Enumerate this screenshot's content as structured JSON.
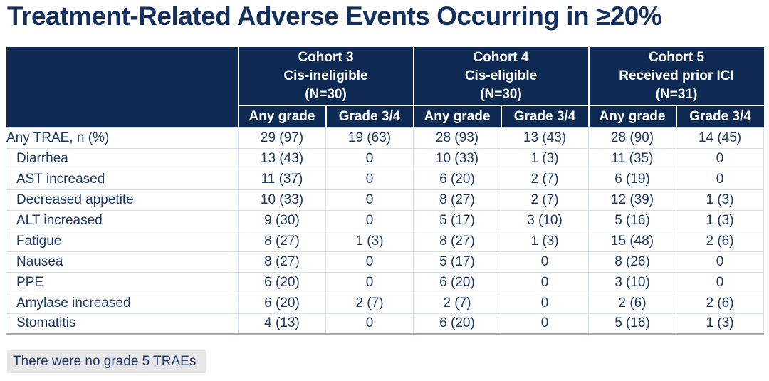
{
  "title": "Treatment-Related Adverse Events Occurring in ≥20%",
  "chart_data": {
    "type": "table",
    "title": "Treatment-Related Adverse Events Occurring in ≥20%",
    "cohorts": [
      {
        "name": "Cohort 3",
        "subtitle": "Cis-ineligible",
        "n": "(N=30)"
      },
      {
        "name": "Cohort 4",
        "subtitle": "Cis-eligible",
        "n": "(N=30)"
      },
      {
        "name": "Cohort 5",
        "subtitle": "Received prior ICI",
        "n": "(N=31)"
      }
    ],
    "grade_columns": [
      "Any grade",
      "Grade 3/4",
      "Any grade",
      "Grade 3/4",
      "Any grade",
      "Grade 3/4"
    ],
    "rows": [
      {
        "label": "Any TRAE, n (%)",
        "indent": false,
        "values": [
          "29 (97)",
          "19 (63)",
          "28 (93)",
          "13 (43)",
          "28 (90)",
          "14 (45)"
        ]
      },
      {
        "label": "Diarrhea",
        "indent": true,
        "values": [
          "13 (43)",
          "0",
          "10 (33)",
          "1 (3)",
          "11 (35)",
          "0"
        ]
      },
      {
        "label": "AST increased",
        "indent": true,
        "values": [
          "11 (37)",
          "0",
          "6 (20)",
          "2 (7)",
          "6 (19)",
          "0"
        ]
      },
      {
        "label": "Decreased appetite",
        "indent": true,
        "values": [
          "10 (33)",
          "0",
          "8 (27)",
          "2 (7)",
          "12 (39)",
          "1 (3)"
        ]
      },
      {
        "label": "ALT increased",
        "indent": true,
        "values": [
          "9 (30)",
          "0",
          "5 (17)",
          "3 (10)",
          "5 (16)",
          "1 (3)"
        ]
      },
      {
        "label": "Fatigue",
        "indent": true,
        "values": [
          "8 (27)",
          "1 (3)",
          "8 (27)",
          "1 (3)",
          "15 (48)",
          "2 (6)"
        ]
      },
      {
        "label": "Nausea",
        "indent": true,
        "values": [
          "8 (27)",
          "0",
          "5 (17)",
          "0",
          "8 (26)",
          "0"
        ]
      },
      {
        "label": "PPE",
        "indent": true,
        "values": [
          "6 (20)",
          "0",
          "6 (20)",
          "0",
          "3 (10)",
          "0"
        ]
      },
      {
        "label": "Amylase increased",
        "indent": true,
        "values": [
          "6 (20)",
          "2 (7)",
          "2 (7)",
          "0",
          "2 (6)",
          "2 (6)"
        ]
      },
      {
        "label": "Stomatitis",
        "indent": true,
        "values": [
          "4 (13)",
          "0",
          "6 (20)",
          "0",
          "5 (16)",
          "1 (3)"
        ]
      }
    ],
    "footnote": "There were no grade 5 TRAEs"
  },
  "colors": {
    "header_bg": "#0f2a52",
    "header_text": "#ffffff",
    "header_divider": "#ffffff",
    "title_text": "#14305e",
    "body_text": "#1b3866",
    "row_separator": "#d7dfec",
    "table_bottom_border": "#a6aab2",
    "footnote_bg": "#e7e7e9"
  }
}
